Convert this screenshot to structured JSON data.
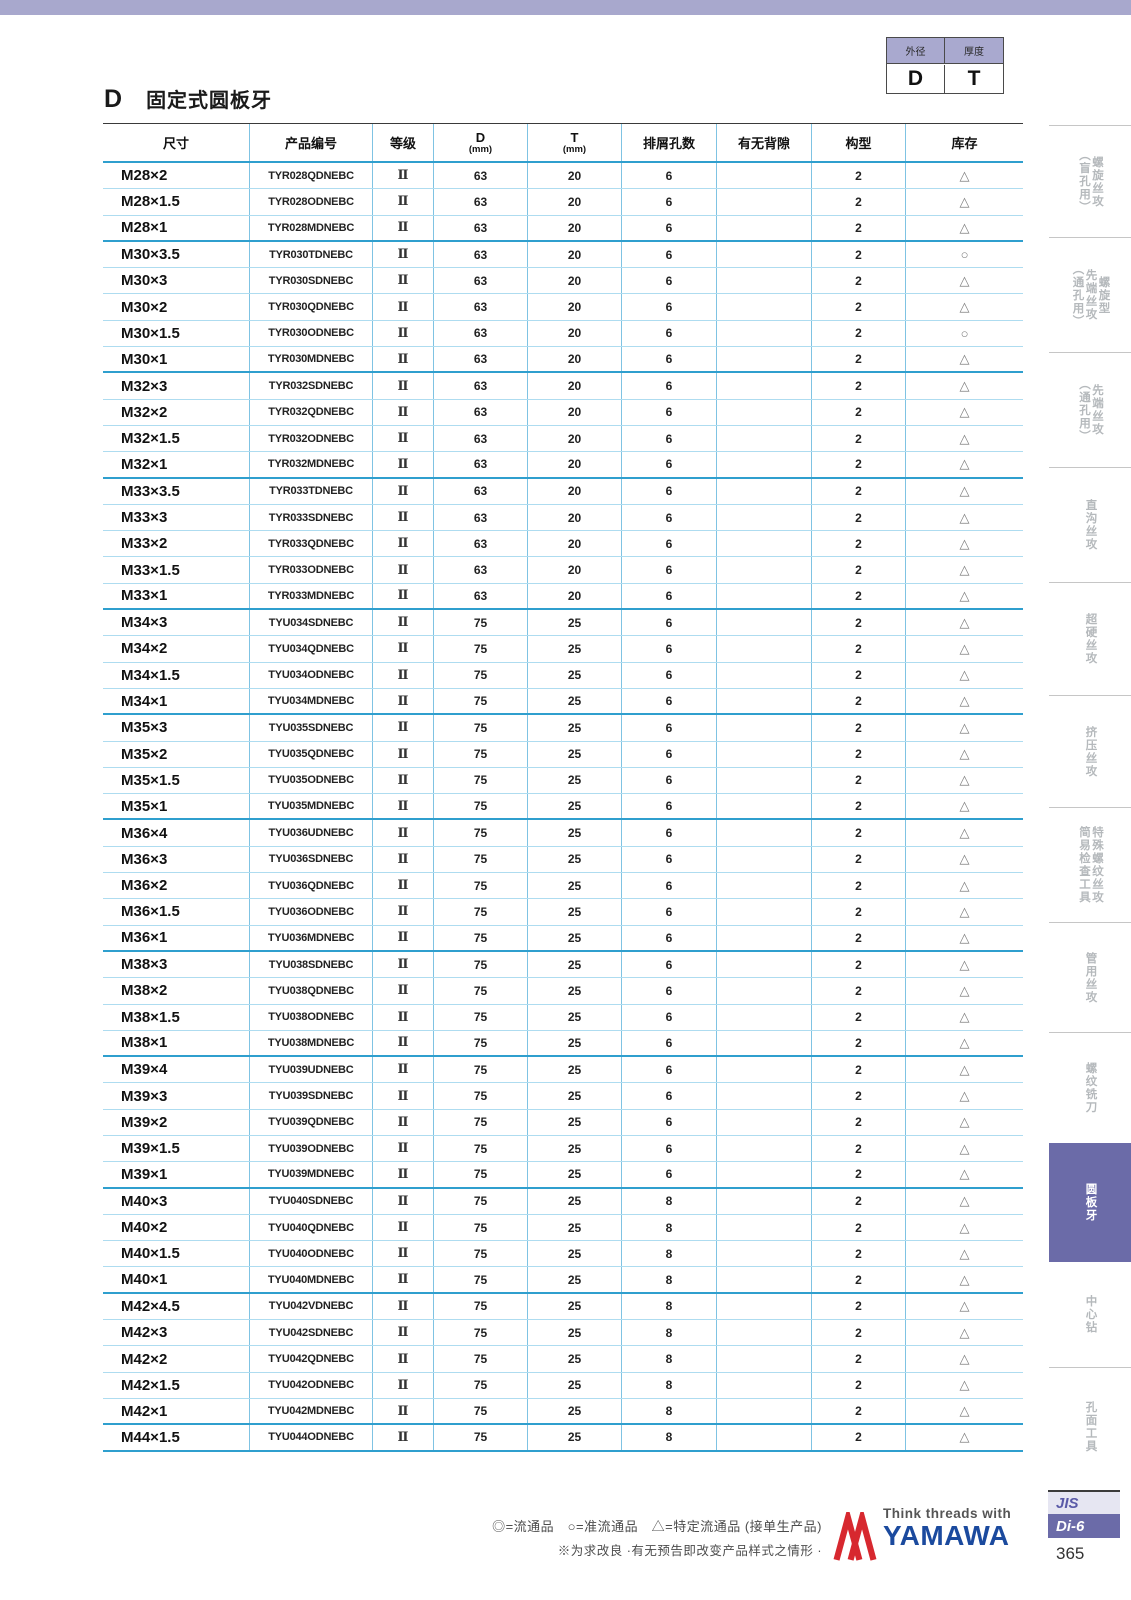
{
  "page": {
    "section_letter": "D",
    "title": "固定式圆板牙",
    "page_number": "365",
    "standard": "JIS",
    "series": "Di-6"
  },
  "legend_box": {
    "col1_header": "外径",
    "col2_header": "厚度",
    "col1_value": "D",
    "col2_value": "T"
  },
  "table": {
    "headers": [
      "尺寸",
      "产品编号",
      "等级",
      "D",
      "T",
      "排屑孔数",
      "有无背隙",
      "构型",
      "库存"
    ],
    "d_unit": "(mm)",
    "t_unit": "(mm)",
    "rows": [
      {
        "size": "M28×2",
        "code": "TYR028QDNEBC",
        "grade": "Ⅱ",
        "d": 63,
        "t": 20,
        "holes": 6,
        "backlash": "",
        "config": "2",
        "stock": "△",
        "group_end": false
      },
      {
        "size": "M28×1.5",
        "code": "TYR028ODNEBC",
        "grade": "Ⅱ",
        "d": 63,
        "t": 20,
        "holes": 6,
        "backlash": "",
        "config": "2",
        "stock": "△",
        "group_end": false
      },
      {
        "size": "M28×1",
        "code": "TYR028MDNEBC",
        "grade": "Ⅱ",
        "d": 63,
        "t": 20,
        "holes": 6,
        "backlash": "",
        "config": "2",
        "stock": "△",
        "group_end": true
      },
      {
        "size": "M30×3.5",
        "code": "TYR030TDNEBC",
        "grade": "Ⅱ",
        "d": 63,
        "t": 20,
        "holes": 6,
        "backlash": "",
        "config": "2",
        "stock": "○",
        "group_end": false
      },
      {
        "size": "M30×3",
        "code": "TYR030SDNEBC",
        "grade": "Ⅱ",
        "d": 63,
        "t": 20,
        "holes": 6,
        "backlash": "",
        "config": "2",
        "stock": "△",
        "group_end": false
      },
      {
        "size": "M30×2",
        "code": "TYR030QDNEBC",
        "grade": "Ⅱ",
        "d": 63,
        "t": 20,
        "holes": 6,
        "backlash": "",
        "config": "2",
        "stock": "△",
        "group_end": false
      },
      {
        "size": "M30×1.5",
        "code": "TYR030ODNEBC",
        "grade": "Ⅱ",
        "d": 63,
        "t": 20,
        "holes": 6,
        "backlash": "",
        "config": "2",
        "stock": "○",
        "group_end": false
      },
      {
        "size": "M30×1",
        "code": "TYR030MDNEBC",
        "grade": "Ⅱ",
        "d": 63,
        "t": 20,
        "holes": 6,
        "backlash": "",
        "config": "2",
        "stock": "△",
        "group_end": true
      },
      {
        "size": "M32×3",
        "code": "TYR032SDNEBC",
        "grade": "Ⅱ",
        "d": 63,
        "t": 20,
        "holes": 6,
        "backlash": "",
        "config": "2",
        "stock": "△",
        "group_end": false
      },
      {
        "size": "M32×2",
        "code": "TYR032QDNEBC",
        "grade": "Ⅱ",
        "d": 63,
        "t": 20,
        "holes": 6,
        "backlash": "",
        "config": "2",
        "stock": "△",
        "group_end": false
      },
      {
        "size": "M32×1.5",
        "code": "TYR032ODNEBC",
        "grade": "Ⅱ",
        "d": 63,
        "t": 20,
        "holes": 6,
        "backlash": "",
        "config": "2",
        "stock": "△",
        "group_end": false
      },
      {
        "size": "M32×1",
        "code": "TYR032MDNEBC",
        "grade": "Ⅱ",
        "d": 63,
        "t": 20,
        "holes": 6,
        "backlash": "",
        "config": "2",
        "stock": "△",
        "group_end": true
      },
      {
        "size": "M33×3.5",
        "code": "TYR033TDNEBC",
        "grade": "Ⅱ",
        "d": 63,
        "t": 20,
        "holes": 6,
        "backlash": "",
        "config": "2",
        "stock": "△",
        "group_end": false
      },
      {
        "size": "M33×3",
        "code": "TYR033SDNEBC",
        "grade": "Ⅱ",
        "d": 63,
        "t": 20,
        "holes": 6,
        "backlash": "",
        "config": "2",
        "stock": "△",
        "group_end": false
      },
      {
        "size": "M33×2",
        "code": "TYR033QDNEBC",
        "grade": "Ⅱ",
        "d": 63,
        "t": 20,
        "holes": 6,
        "backlash": "",
        "config": "2",
        "stock": "△",
        "group_end": false
      },
      {
        "size": "M33×1.5",
        "code": "TYR033ODNEBC",
        "grade": "Ⅱ",
        "d": 63,
        "t": 20,
        "holes": 6,
        "backlash": "",
        "config": "2",
        "stock": "△",
        "group_end": false
      },
      {
        "size": "M33×1",
        "code": "TYR033MDNEBC",
        "grade": "Ⅱ",
        "d": 63,
        "t": 20,
        "holes": 6,
        "backlash": "",
        "config": "2",
        "stock": "△",
        "group_end": true
      },
      {
        "size": "M34×3",
        "code": "TYU034SDNEBC",
        "grade": "Ⅱ",
        "d": 75,
        "t": 25,
        "holes": 6,
        "backlash": "",
        "config": "2",
        "stock": "△",
        "group_end": false
      },
      {
        "size": "M34×2",
        "code": "TYU034QDNEBC",
        "grade": "Ⅱ",
        "d": 75,
        "t": 25,
        "holes": 6,
        "backlash": "",
        "config": "2",
        "stock": "△",
        "group_end": false
      },
      {
        "size": "M34×1.5",
        "code": "TYU034ODNEBC",
        "grade": "Ⅱ",
        "d": 75,
        "t": 25,
        "holes": 6,
        "backlash": "",
        "config": "2",
        "stock": "△",
        "group_end": false
      },
      {
        "size": "M34×1",
        "code": "TYU034MDNEBC",
        "grade": "Ⅱ",
        "d": 75,
        "t": 25,
        "holes": 6,
        "backlash": "",
        "config": "2",
        "stock": "△",
        "group_end": true
      },
      {
        "size": "M35×3",
        "code": "TYU035SDNEBC",
        "grade": "Ⅱ",
        "d": 75,
        "t": 25,
        "holes": 6,
        "backlash": "",
        "config": "2",
        "stock": "△",
        "group_end": false
      },
      {
        "size": "M35×2",
        "code": "TYU035QDNEBC",
        "grade": "Ⅱ",
        "d": 75,
        "t": 25,
        "holes": 6,
        "backlash": "",
        "config": "2",
        "stock": "△",
        "group_end": false
      },
      {
        "size": "M35×1.5",
        "code": "TYU035ODNEBC",
        "grade": "Ⅱ",
        "d": 75,
        "t": 25,
        "holes": 6,
        "backlash": "",
        "config": "2",
        "stock": "△",
        "group_end": false
      },
      {
        "size": "M35×1",
        "code": "TYU035MDNEBC",
        "grade": "Ⅱ",
        "d": 75,
        "t": 25,
        "holes": 6,
        "backlash": "",
        "config": "2",
        "stock": "△",
        "group_end": true
      },
      {
        "size": "M36×4",
        "code": "TYU036UDNEBC",
        "grade": "Ⅱ",
        "d": 75,
        "t": 25,
        "holes": 6,
        "backlash": "",
        "config": "2",
        "stock": "△",
        "group_end": false
      },
      {
        "size": "M36×3",
        "code": "TYU036SDNEBC",
        "grade": "Ⅱ",
        "d": 75,
        "t": 25,
        "holes": 6,
        "backlash": "",
        "config": "2",
        "stock": "△",
        "group_end": false
      },
      {
        "size": "M36×2",
        "code": "TYU036QDNEBC",
        "grade": "Ⅱ",
        "d": 75,
        "t": 25,
        "holes": 6,
        "backlash": "",
        "config": "2",
        "stock": "△",
        "group_end": false
      },
      {
        "size": "M36×1.5",
        "code": "TYU036ODNEBC",
        "grade": "Ⅱ",
        "d": 75,
        "t": 25,
        "holes": 6,
        "backlash": "",
        "config": "2",
        "stock": "△",
        "group_end": false
      },
      {
        "size": "M36×1",
        "code": "TYU036MDNEBC",
        "grade": "Ⅱ",
        "d": 75,
        "t": 25,
        "holes": 6,
        "backlash": "",
        "config": "2",
        "stock": "△",
        "group_end": true
      },
      {
        "size": "M38×3",
        "code": "TYU038SDNEBC",
        "grade": "Ⅱ",
        "d": 75,
        "t": 25,
        "holes": 6,
        "backlash": "",
        "config": "2",
        "stock": "△",
        "group_end": false
      },
      {
        "size": "M38×2",
        "code": "TYU038QDNEBC",
        "grade": "Ⅱ",
        "d": 75,
        "t": 25,
        "holes": 6,
        "backlash": "",
        "config": "2",
        "stock": "△",
        "group_end": false
      },
      {
        "size": "M38×1.5",
        "code": "TYU038ODNEBC",
        "grade": "Ⅱ",
        "d": 75,
        "t": 25,
        "holes": 6,
        "backlash": "",
        "config": "2",
        "stock": "△",
        "group_end": false
      },
      {
        "size": "M38×1",
        "code": "TYU038MDNEBC",
        "grade": "Ⅱ",
        "d": 75,
        "t": 25,
        "holes": 6,
        "backlash": "",
        "config": "2",
        "stock": "△",
        "group_end": true
      },
      {
        "size": "M39×4",
        "code": "TYU039UDNEBC",
        "grade": "Ⅱ",
        "d": 75,
        "t": 25,
        "holes": 6,
        "backlash": "",
        "config": "2",
        "stock": "△",
        "group_end": false
      },
      {
        "size": "M39×3",
        "code": "TYU039SDNEBC",
        "grade": "Ⅱ",
        "d": 75,
        "t": 25,
        "holes": 6,
        "backlash": "",
        "config": "2",
        "stock": "△",
        "group_end": false
      },
      {
        "size": "M39×2",
        "code": "TYU039QDNEBC",
        "grade": "Ⅱ",
        "d": 75,
        "t": 25,
        "holes": 6,
        "backlash": "",
        "config": "2",
        "stock": "△",
        "group_end": false
      },
      {
        "size": "M39×1.5",
        "code": "TYU039ODNEBC",
        "grade": "Ⅱ",
        "d": 75,
        "t": 25,
        "holes": 6,
        "backlash": "",
        "config": "2",
        "stock": "△",
        "group_end": false
      },
      {
        "size": "M39×1",
        "code": "TYU039MDNEBC",
        "grade": "Ⅱ",
        "d": 75,
        "t": 25,
        "holes": 6,
        "backlash": "",
        "config": "2",
        "stock": "△",
        "group_end": true
      },
      {
        "size": "M40×3",
        "code": "TYU040SDNEBC",
        "grade": "Ⅱ",
        "d": 75,
        "t": 25,
        "holes": 8,
        "backlash": "",
        "config": "2",
        "stock": "△",
        "group_end": false
      },
      {
        "size": "M40×2",
        "code": "TYU040QDNEBC",
        "grade": "Ⅱ",
        "d": 75,
        "t": 25,
        "holes": 8,
        "backlash": "",
        "config": "2",
        "stock": "△",
        "group_end": false
      },
      {
        "size": "M40×1.5",
        "code": "TYU040ODNEBC",
        "grade": "Ⅱ",
        "d": 75,
        "t": 25,
        "holes": 8,
        "backlash": "",
        "config": "2",
        "stock": "△",
        "group_end": false
      },
      {
        "size": "M40×1",
        "code": "TYU040MDNEBC",
        "grade": "Ⅱ",
        "d": 75,
        "t": 25,
        "holes": 8,
        "backlash": "",
        "config": "2",
        "stock": "△",
        "group_end": true
      },
      {
        "size": "M42×4.5",
        "code": "TYU042VDNEBC",
        "grade": "Ⅱ",
        "d": 75,
        "t": 25,
        "holes": 8,
        "backlash": "",
        "config": "2",
        "stock": "△",
        "group_end": false
      },
      {
        "size": "M42×3",
        "code": "TYU042SDNEBC",
        "grade": "Ⅱ",
        "d": 75,
        "t": 25,
        "holes": 8,
        "backlash": "",
        "config": "2",
        "stock": "△",
        "group_end": false
      },
      {
        "size": "M42×2",
        "code": "TYU042QDNEBC",
        "grade": "Ⅱ",
        "d": 75,
        "t": 25,
        "holes": 8,
        "backlash": "",
        "config": "2",
        "stock": "△",
        "group_end": false
      },
      {
        "size": "M42×1.5",
        "code": "TYU042ODNEBC",
        "grade": "Ⅱ",
        "d": 75,
        "t": 25,
        "holes": 8,
        "backlash": "",
        "config": "2",
        "stock": "△",
        "group_end": false
      },
      {
        "size": "M42×1",
        "code": "TYU042MDNEBC",
        "grade": "Ⅱ",
        "d": 75,
        "t": 25,
        "holes": 8,
        "backlash": "",
        "config": "2",
        "stock": "△",
        "group_end": true
      },
      {
        "size": "M44×1.5",
        "code": "TYU044ODNEBC",
        "grade": "Ⅱ",
        "d": 75,
        "t": 25,
        "holes": 8,
        "backlash": "",
        "config": "2",
        "stock": "△",
        "group_end": true
      }
    ]
  },
  "sidebar": {
    "items": [
      {
        "label": "螺旋丝攻\n（盲孔用）",
        "active": false
      },
      {
        "label": "螺旋型\n先端丝攻\n（通孔用）",
        "active": false
      },
      {
        "label": "先端丝攻\n（通孔用）",
        "active": false
      },
      {
        "label": "直沟丝攻",
        "active": false
      },
      {
        "label": "超硬丝攻",
        "active": false
      },
      {
        "label": "挤压丝攻",
        "active": false
      },
      {
        "label": "特殊螺纹丝攻\n简易检查工具",
        "active": false
      },
      {
        "label": "管用丝攻",
        "active": false
      },
      {
        "label": "螺纹铣刀",
        "active": false
      },
      {
        "label": "圆板牙",
        "active": true
      },
      {
        "label": "中心钻",
        "active": false
      },
      {
        "label": "孔面工具",
        "active": false
      }
    ]
  },
  "footer": {
    "symbol_legend": "◎=流通品　○=准流通品　△=特定流通品 (接单生产品)",
    "note": "※为求改良 ·有无预告即改变产品样式之情形 ·",
    "logo_tagline": "Think threads with",
    "logo_name": "YAMAWA"
  },
  "colors": {
    "accent_purple": "#6b6ba8",
    "lavender_band": "#a8a8cd",
    "group_line_blue": "#2f9fce",
    "row_line_blue": "#aedcf0",
    "logo_red": "#d7282f",
    "logo_blue": "#1b4a9e"
  }
}
